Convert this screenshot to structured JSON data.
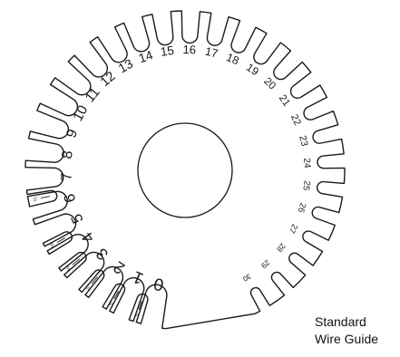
{
  "caption": {
    "line1": "Standard",
    "line2": "Wire Guide"
  },
  "gauge": {
    "slot_labels": [
      "0",
      "1",
      "2",
      "3",
      "4",
      "5",
      "6",
      "7",
      "8",
      "9",
      "10",
      "11",
      "12",
      "13",
      "14",
      "15",
      "16",
      "17",
      "18",
      "19",
      "20",
      "21",
      "22",
      "23",
      "24",
      "25",
      "26",
      "27",
      "28",
      "29",
      "30"
    ],
    "half_size_labels": [
      "½",
      "½",
      "½",
      "½",
      "½",
      "½"
    ],
    "line_color": "#1a1a1a",
    "background": "#ffffff"
  }
}
